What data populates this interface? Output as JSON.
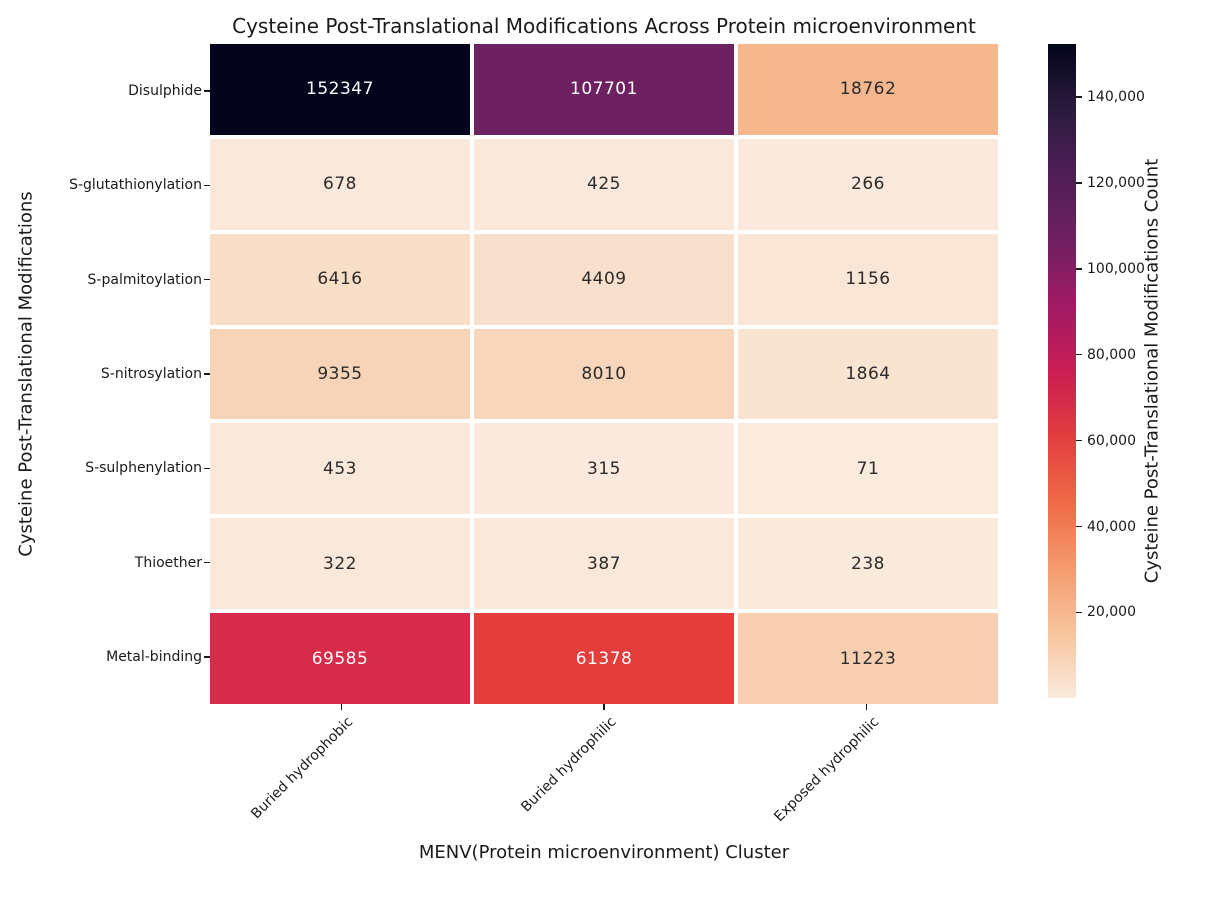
{
  "figure": {
    "background": "#ffffff",
    "text_color": "#1a1a1a"
  },
  "chart_data": {
    "type": "heatmap",
    "title": "Cysteine Post-Translational Modifications Across Protein microenvironment",
    "xlabel": "MENV(Protein microenvironment) Cluster",
    "ylabel": "Cysteine Post-Translational Modifications",
    "colorbar_label": "Cysteine Post-Translational Modifications Count",
    "x_categories": [
      "Buried hydrophobic",
      "Buried hydrophilic",
      "Exposed hydrophilic"
    ],
    "y_categories": [
      "Disulphide",
      "S-glutathionylation",
      "S-palmitoylation",
      "S-nitrosylation",
      "S-sulphenylation",
      "Thioether",
      "Metal-binding"
    ],
    "values": [
      [
        152347,
        107701,
        18762
      ],
      [
        678,
        425,
        266
      ],
      [
        6416,
        4409,
        1156
      ],
      [
        9355,
        8010,
        1864
      ],
      [
        453,
        315,
        71
      ],
      [
        322,
        387,
        238
      ],
      [
        69585,
        61378,
        11223
      ]
    ],
    "vmin": 71,
    "vmax": 152347,
    "grid": false,
    "annotated": true,
    "legend_position": "right-colorbar",
    "colormap": "rocket_r",
    "colorbar_ticks": [
      {
        "value": 20000,
        "label": "20,000"
      },
      {
        "value": 40000,
        "label": "40,000"
      },
      {
        "value": 60000,
        "label": "60,000"
      },
      {
        "value": 80000,
        "label": "80,000"
      },
      {
        "value": 100000,
        "label": "100,000"
      },
      {
        "value": 120000,
        "label": "120,000"
      },
      {
        "value": 140000,
        "label": "140,000"
      }
    ],
    "cell_colors": [
      [
        "#04051C",
        "#6E2161",
        "#F6B78E"
      ],
      [
        "#FAE8DA",
        "#FAE9DB",
        "#FAE9DC"
      ],
      [
        "#F8DDC7",
        "#F9E0CC",
        "#FAE6D6"
      ],
      [
        "#F7D3B7",
        "#F7D6BC",
        "#F9E4D2"
      ],
      [
        "#FAE9DB",
        "#FAE9DC",
        "#FAEBDD"
      ],
      [
        "#FAE9DB",
        "#FAE9DB",
        "#FAEADC"
      ],
      [
        "#D82A49",
        "#E53C3C",
        "#F8CFB1"
      ]
    ],
    "cell_text_colors": [
      [
        "#FFFFFF",
        "#FFFFFF",
        "#2B2B2B"
      ],
      [
        "#2B2B2B",
        "#2B2B2B",
        "#2B2B2B"
      ],
      [
        "#2B2B2B",
        "#2B2B2B",
        "#2B2B2B"
      ],
      [
        "#2B2B2B",
        "#2B2B2B",
        "#2B2B2B"
      ],
      [
        "#2B2B2B",
        "#2B2B2B",
        "#2B2B2B"
      ],
      [
        "#2B2B2B",
        "#2B2B2B",
        "#2B2B2B"
      ],
      [
        "#FFFFFF",
        "#FFFFFF",
        "#2B2B2B"
      ]
    ],
    "colorbar_gradient_top_to_bottom": [
      "#03051A",
      "#2A1B3D",
      "#4F1E58",
      "#701F62",
      "#A11A64",
      "#C91E53",
      "#E23D3E",
      "#EE6A45",
      "#F49A6D",
      "#F8C49C",
      "#FAEBDD"
    ]
  }
}
